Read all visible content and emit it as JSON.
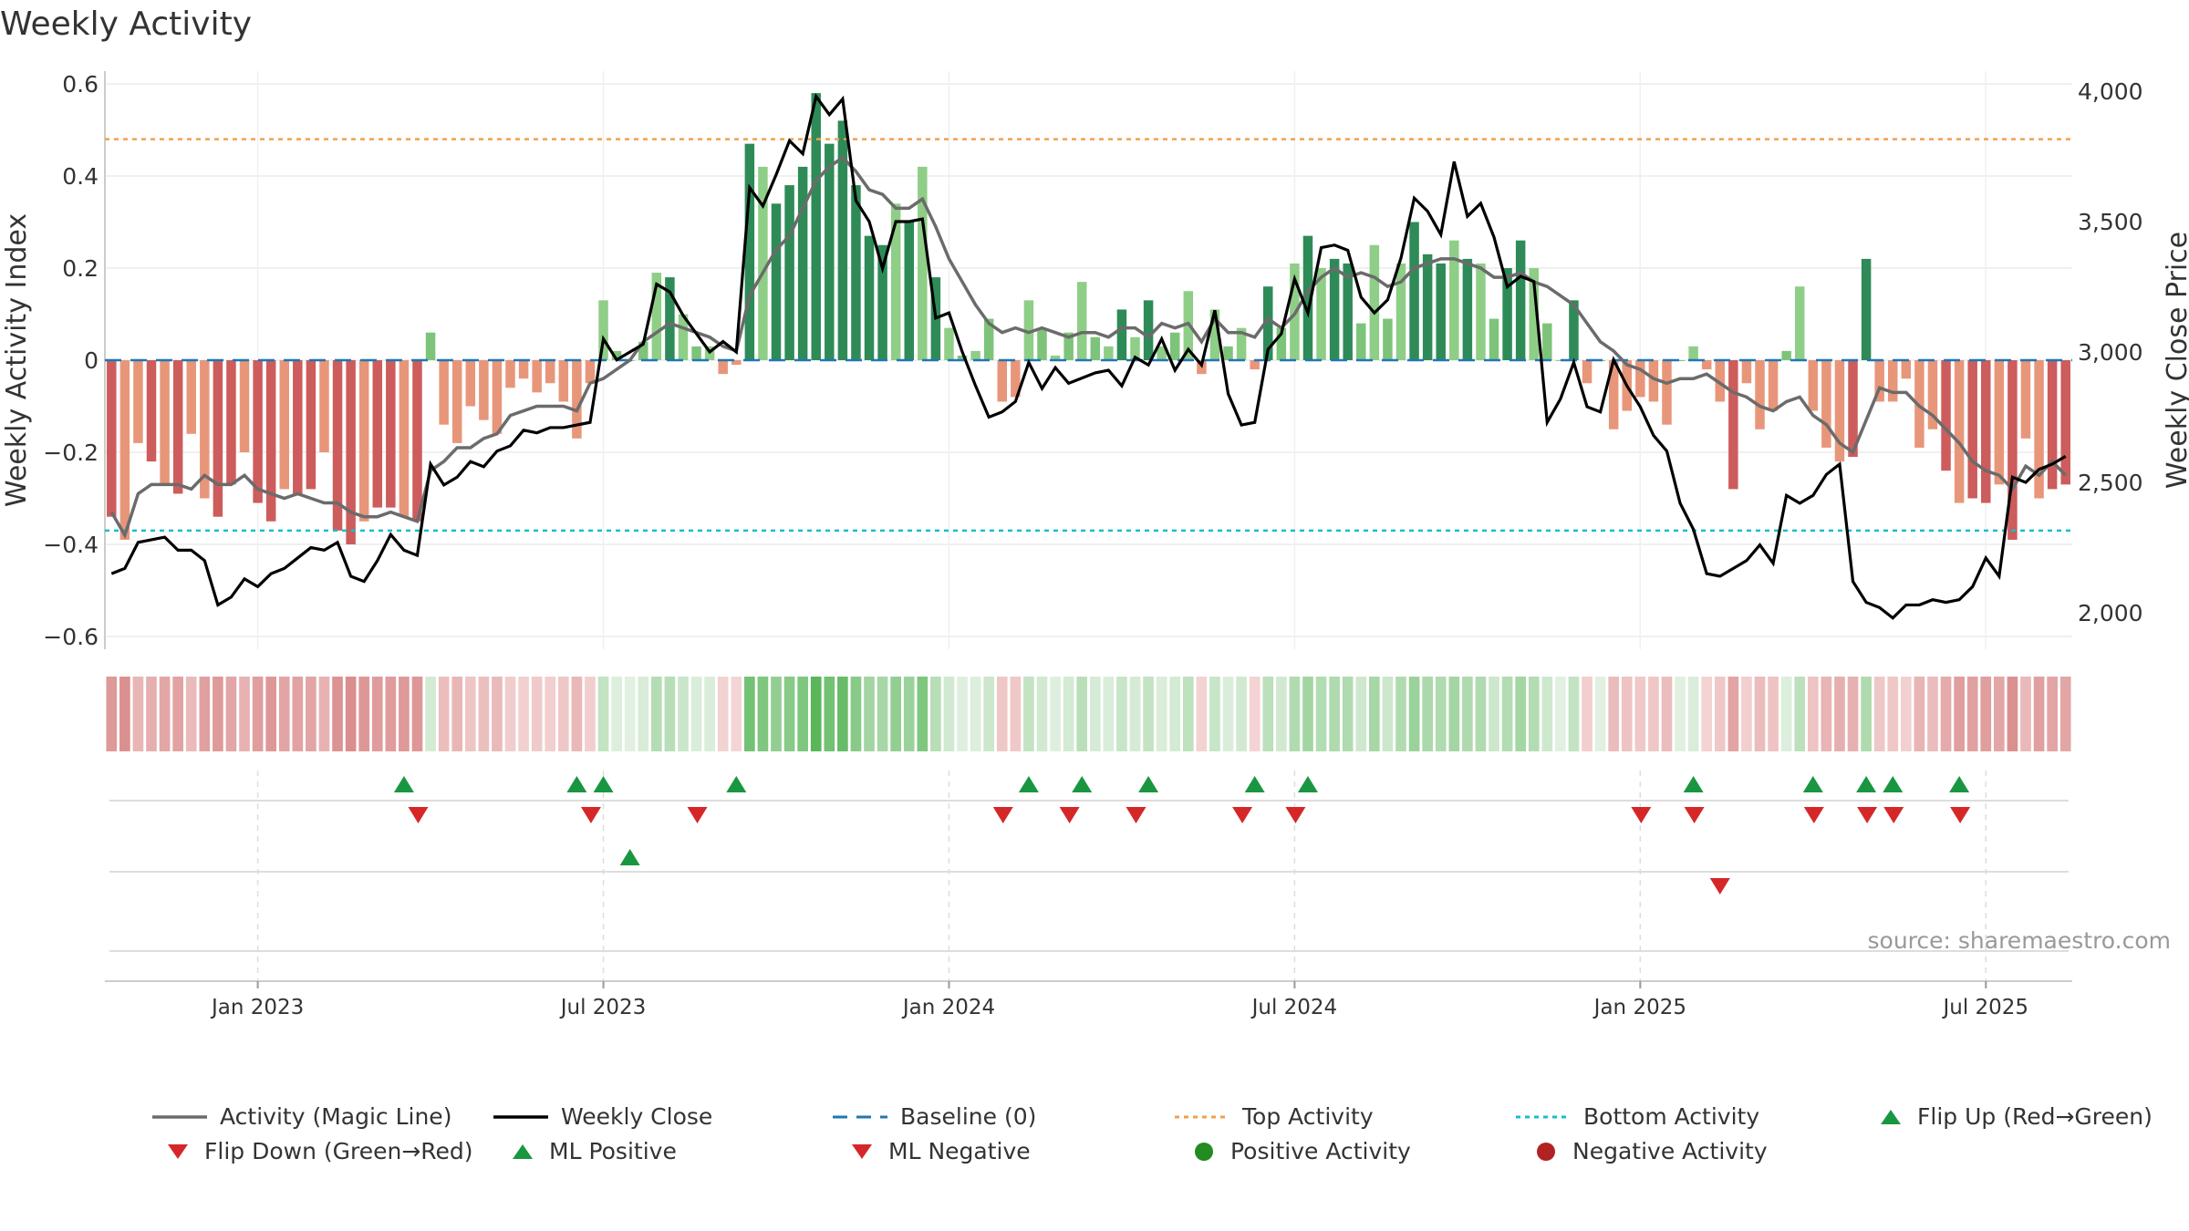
{
  "title": "Weekly Activity",
  "source": "source: sharemaestro.com",
  "axes": {
    "left_label": "Weekly Activity Index",
    "right_label": "Weekly Close Price",
    "left_ticks": [
      "0.6",
      "0.4",
      "0.2",
      "0",
      "−0.2",
      "−0.4",
      "−0.6"
    ],
    "right_ticks": [
      "4,000",
      "3,500",
      "3,000",
      "2,500",
      "2,000"
    ],
    "x_ticks": [
      "Jan 2023",
      "Jul 2023",
      "Jan 2024",
      "Jul 2024",
      "Jan 2025",
      "Jul 2025"
    ]
  },
  "legend": [
    {
      "label": "Activity (Magic Line)",
      "symbol": "line",
      "color": "#6b6b6b"
    },
    {
      "label": "Weekly Close",
      "symbol": "line",
      "color": "#000000"
    },
    {
      "label": "Baseline (0)",
      "symbol": "dash",
      "color": "#1f77b4"
    },
    {
      "label": "Top Activity",
      "symbol": "dot-line",
      "color": "#f0a050"
    },
    {
      "label": "Bottom Activity",
      "symbol": "dot-line",
      "color": "#17becf"
    },
    {
      "label": "Flip Up (Red→Green)",
      "symbol": "tri-up",
      "color": "#1a9641"
    },
    {
      "label": "Flip Down (Green→Red)",
      "symbol": "tri-down",
      "color": "#d62728"
    },
    {
      "label": "ML Positive",
      "symbol": "tri-up",
      "color": "#1a9641"
    },
    {
      "label": "ML Negative",
      "symbol": "tri-down",
      "color": "#d62728"
    },
    {
      "label": "Positive Activity",
      "symbol": "circle",
      "color": "#228b22"
    },
    {
      "label": "Negative Activity",
      "symbol": "circle",
      "color": "#b22222"
    }
  ],
  "chart_data": {
    "type": "bar",
    "title": "Weekly Activity",
    "ylabel": "Weekly Activity Index",
    "y2label": "Weekly Close Price",
    "ylim": [
      -0.6,
      0.6
    ],
    "y2lim": [
      1900,
      4100
    ],
    "week_start": "2022-10-17",
    "x_ticks": [
      {
        "label": "Jan 2023",
        "week": 11
      },
      {
        "label": "Jul 2023",
        "week": 37
      },
      {
        "label": "Jan 2024",
        "week": 63
      },
      {
        "label": "Jul 2024",
        "week": 89
      },
      {
        "label": "Jan 2025",
        "week": 115
      },
      {
        "label": "Jul 2025",
        "week": 141
      }
    ],
    "top_activity": 0.48,
    "bottom_activity": -0.37,
    "activity": [
      -0.34,
      -0.39,
      -0.18,
      -0.22,
      -0.27,
      -0.29,
      -0.16,
      -0.3,
      -0.34,
      -0.27,
      -0.2,
      -0.31,
      -0.35,
      -0.28,
      -0.29,
      -0.28,
      -0.2,
      -0.37,
      -0.4,
      -0.35,
      -0.32,
      -0.32,
      -0.34,
      -0.35,
      0.06,
      -0.14,
      -0.18,
      -0.1,
      -0.13,
      -0.16,
      -0.06,
      -0.04,
      -0.07,
      -0.05,
      -0.09,
      -0.17,
      -0.05,
      0.13,
      0.02,
      0.0,
      0.04,
      0.19,
      0.18,
      0.1,
      0.03,
      0.03,
      -0.03,
      -0.01,
      0.47,
      0.42,
      0.34,
      0.38,
      0.42,
      0.58,
      0.47,
      0.52,
      0.38,
      0.27,
      0.25,
      0.34,
      0.3,
      0.42,
      0.18,
      0.07,
      0.01,
      0.02,
      0.09,
      -0.09,
      -0.08,
      0.13,
      0.07,
      0.01,
      0.06,
      0.17,
      0.05,
      0.03,
      0.11,
      0.05,
      0.13,
      0.03,
      0.06,
      0.15,
      -0.03,
      0.11,
      0.03,
      0.07,
      -0.02,
      0.16,
      0.07,
      0.21,
      0.27,
      0.2,
      0.22,
      0.21,
      0.08,
      0.25,
      0.09,
      0.21,
      0.3,
      0.23,
      0.21,
      0.26,
      0.22,
      0.21,
      0.09,
      0.2,
      0.26,
      0.2,
      0.08,
      0.0,
      0.13,
      -0.05,
      0.0,
      -0.15,
      -0.11,
      -0.08,
      -0.09,
      -0.14,
      0.0,
      0.03,
      -0.02,
      -0.09,
      -0.28,
      -0.05,
      -0.15,
      -0.11,
      0.02,
      0.16,
      -0.11,
      -0.19,
      -0.22,
      -0.21,
      0.22,
      -0.09,
      -0.09,
      -0.04,
      -0.19,
      -0.15,
      -0.24,
      -0.31,
      -0.3,
      -0.31,
      -0.27,
      -0.39,
      -0.17,
      -0.3,
      -0.28,
      -0.27
    ],
    "magic_line": [
      -0.33,
      -0.38,
      -0.29,
      -0.27,
      -0.27,
      -0.27,
      -0.28,
      -0.25,
      -0.27,
      -0.27,
      -0.25,
      -0.28,
      -0.29,
      -0.3,
      -0.29,
      -0.3,
      -0.31,
      -0.31,
      -0.33,
      -0.34,
      -0.34,
      -0.33,
      -0.34,
      -0.35,
      -0.24,
      -0.22,
      -0.19,
      -0.19,
      -0.17,
      -0.16,
      -0.12,
      -0.11,
      -0.1,
      -0.1,
      -0.1,
      -0.11,
      -0.05,
      -0.04,
      -0.02,
      0.0,
      0.04,
      0.06,
      0.08,
      0.07,
      0.06,
      0.05,
      0.03,
      0.02,
      0.14,
      0.19,
      0.24,
      0.27,
      0.33,
      0.39,
      0.42,
      0.44,
      0.41,
      0.37,
      0.36,
      0.33,
      0.33,
      0.35,
      0.29,
      0.22,
      0.17,
      0.12,
      0.08,
      0.06,
      0.07,
      0.06,
      0.07,
      0.06,
      0.05,
      0.06,
      0.06,
      0.05,
      0.07,
      0.07,
      0.05,
      0.08,
      0.07,
      0.08,
      0.04,
      0.09,
      0.06,
      0.06,
      0.05,
      0.09,
      0.07,
      0.1,
      0.15,
      0.18,
      0.2,
      0.18,
      0.19,
      0.18,
      0.16,
      0.17,
      0.2,
      0.21,
      0.22,
      0.22,
      0.21,
      0.2,
      0.18,
      0.18,
      0.19,
      0.17,
      0.16,
      0.14,
      0.12,
      0.08,
      0.04,
      0.02,
      -0.01,
      -0.02,
      -0.04,
      -0.05,
      -0.04,
      -0.04,
      -0.03,
      -0.05,
      -0.07,
      -0.08,
      -0.1,
      -0.11,
      -0.09,
      -0.08,
      -0.12,
      -0.14,
      -0.18,
      -0.2,
      -0.13,
      -0.06,
      -0.07,
      -0.07,
      -0.1,
      -0.12,
      -0.15,
      -0.18,
      -0.22,
      -0.24,
      -0.25,
      -0.28,
      -0.23,
      -0.25,
      -0.22,
      -0.25
    ],
    "weekly_close": [
      2150,
      2170,
      2270,
      2280,
      2290,
      2240,
      2240,
      2200,
      2030,
      2060,
      2130,
      2100,
      2150,
      2170,
      2210,
      2250,
      2240,
      2270,
      2140,
      2120,
      2200,
      2300,
      2240,
      2220,
      2570,
      2490,
      2520,
      2580,
      2560,
      2620,
      2640,
      2700,
      2690,
      2710,
      2710,
      2720,
      2730,
      3050,
      2970,
      3000,
      3030,
      3260,
      3230,
      3140,
      3070,
      3000,
      3040,
      3000,
      3630,
      3560,
      3680,
      3810,
      3760,
      3980,
      3910,
      3970,
      3580,
      3500,
      3320,
      3500,
      3500,
      3510,
      3130,
      3150,
      3000,
      2870,
      2750,
      2770,
      2810,
      2960,
      2860,
      2940,
      2880,
      2900,
      2920,
      2930,
      2870,
      2980,
      2950,
      3050,
      2930,
      3010,
      2950,
      3160,
      2840,
      2720,
      2730,
      3010,
      3070,
      3280,
      3150,
      3400,
      3410,
      3390,
      3210,
      3150,
      3200,
      3360,
      3590,
      3540,
      3450,
      3730,
      3520,
      3570,
      3440,
      3250,
      3290,
      3270,
      2730,
      2820,
      2960,
      2790,
      2770,
      2970,
      2870,
      2790,
      2680,
      2620,
      2420,
      2320,
      2150,
      2140,
      2170,
      2200,
      2260,
      2190,
      2450,
      2420,
      2450,
      2530,
      2570,
      2120,
      2040,
      2020,
      1980,
      2030,
      2030,
      2050,
      2040,
      2050,
      2100,
      2210,
      2140,
      2520,
      2500,
      2550,
      2570,
      2600
    ],
    "flip_up_weeks": [
      22,
      35,
      37,
      47,
      69,
      73,
      78,
      86,
      90,
      119,
      128,
      132,
      134,
      139
    ],
    "flip_down_weeks": [
      23,
      36,
      44,
      67,
      72,
      77,
      85,
      89,
      115,
      119,
      128,
      132,
      134,
      139
    ],
    "ml_positive_weeks": [
      39
    ],
    "ml_negative_weeks": [
      121
    ]
  }
}
